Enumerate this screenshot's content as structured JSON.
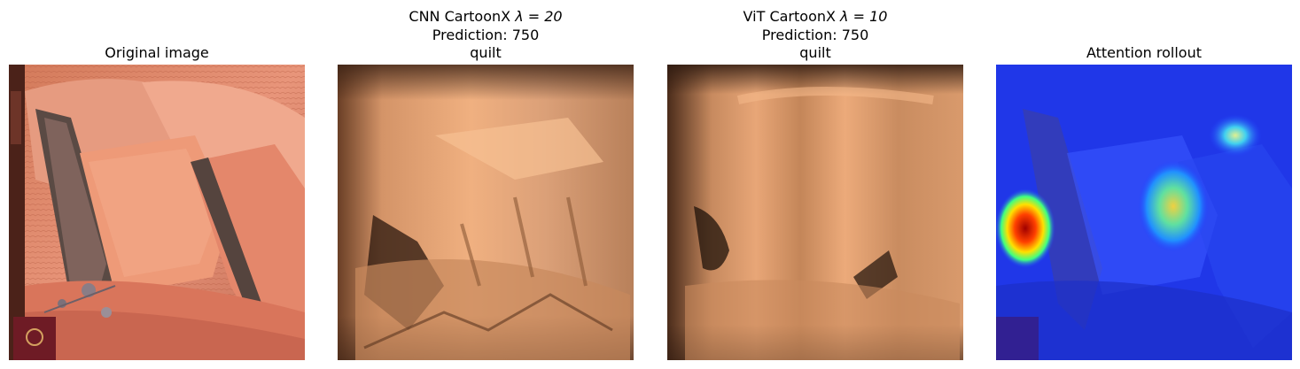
{
  "panels": [
    {
      "title_lines": [
        "Original image"
      ],
      "image": "photo of a bed with orange-red satin pillows and quilt"
    },
    {
      "title_line1_prefix": "CNN CartoonX ",
      "title_line1_lambda": "λ = 20",
      "title_line2": "Prediction: 750",
      "title_line3": "quilt",
      "image": "cartoon explanation of bed and pillows in copper tones"
    },
    {
      "title_line1_prefix": "ViT CartoonX ",
      "title_line1_lambda": "λ = 10",
      "title_line2": "Prediction: 750",
      "title_line3": "quilt",
      "image": "smoother cartoon explanation in copper tones"
    },
    {
      "title_lines": [
        "Attention rollout"
      ],
      "image": "blue heatmap overlay with hot spots"
    }
  ],
  "colors": {
    "copper_light": "#f2b27f",
    "copper_mid": "#c98a5a",
    "copper_dark": "#3b2315",
    "photo_salmon": "#e58a68",
    "heatmap_blue": "#1f3cff",
    "heatmap_red": "#c00000"
  }
}
